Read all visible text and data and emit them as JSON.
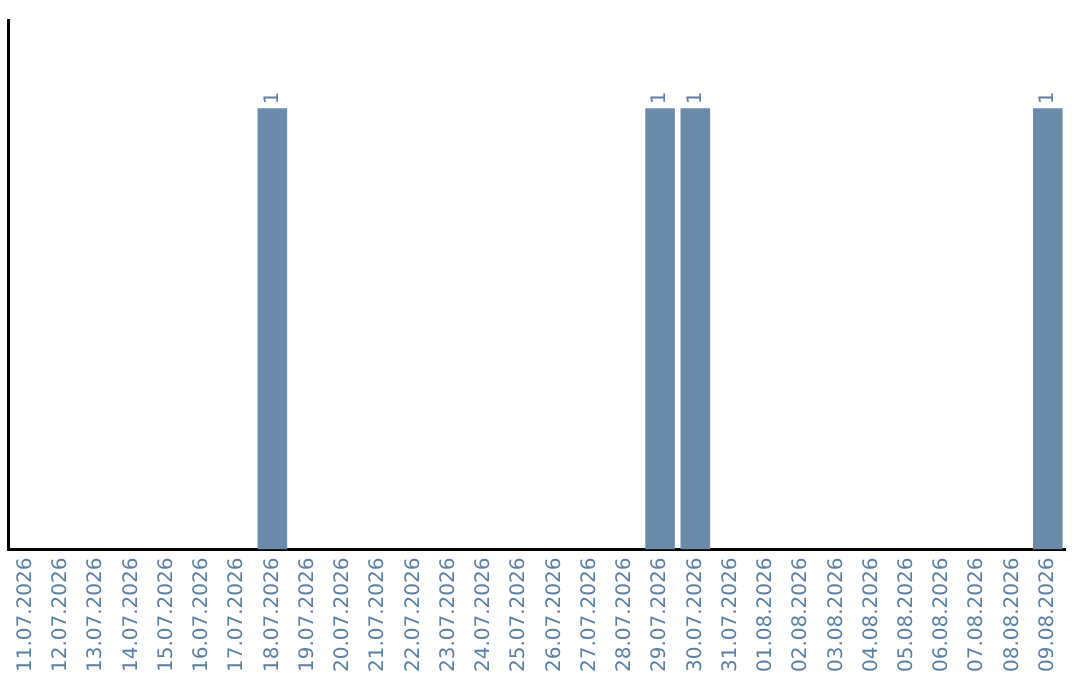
{
  "chart_data": {
    "type": "bar",
    "categories": [
      "11.07.2026",
      "12.07.2026",
      "13.07.2026",
      "14.07.2026",
      "15.07.2026",
      "16.07.2026",
      "17.07.2026",
      "18.07.2026",
      "19.07.2026",
      "20.07.2026",
      "21.07.2026",
      "22.07.2026",
      "23.07.2026",
      "24.07.2026",
      "25.07.2026",
      "26.07.2026",
      "27.07.2026",
      "28.07.2026",
      "29.07.2026",
      "30.07.2026",
      "31.07.2026",
      "01.08.2026",
      "02.08.2026",
      "03.08.2026",
      "04.08.2026",
      "05.08.2026",
      "06.08.2026",
      "07.08.2026",
      "08.08.2026",
      "09.08.2026"
    ],
    "values": [
      0,
      0,
      0,
      0,
      0,
      0,
      0,
      1,
      0,
      0,
      0,
      0,
      0,
      0,
      0,
      0,
      0,
      0,
      1,
      1,
      0,
      0,
      0,
      0,
      0,
      0,
      0,
      0,
      0,
      1
    ],
    "value_labels": [
      null,
      null,
      null,
      null,
      null,
      null,
      null,
      "1",
      null,
      null,
      null,
      null,
      null,
      null,
      null,
      null,
      null,
      null,
      "1",
      "1",
      null,
      null,
      null,
      null,
      null,
      null,
      null,
      null,
      null,
      "1"
    ],
    "color": "#6a8aaa",
    "tick_labels": "x",
    "grid": false,
    "legend": false
  }
}
